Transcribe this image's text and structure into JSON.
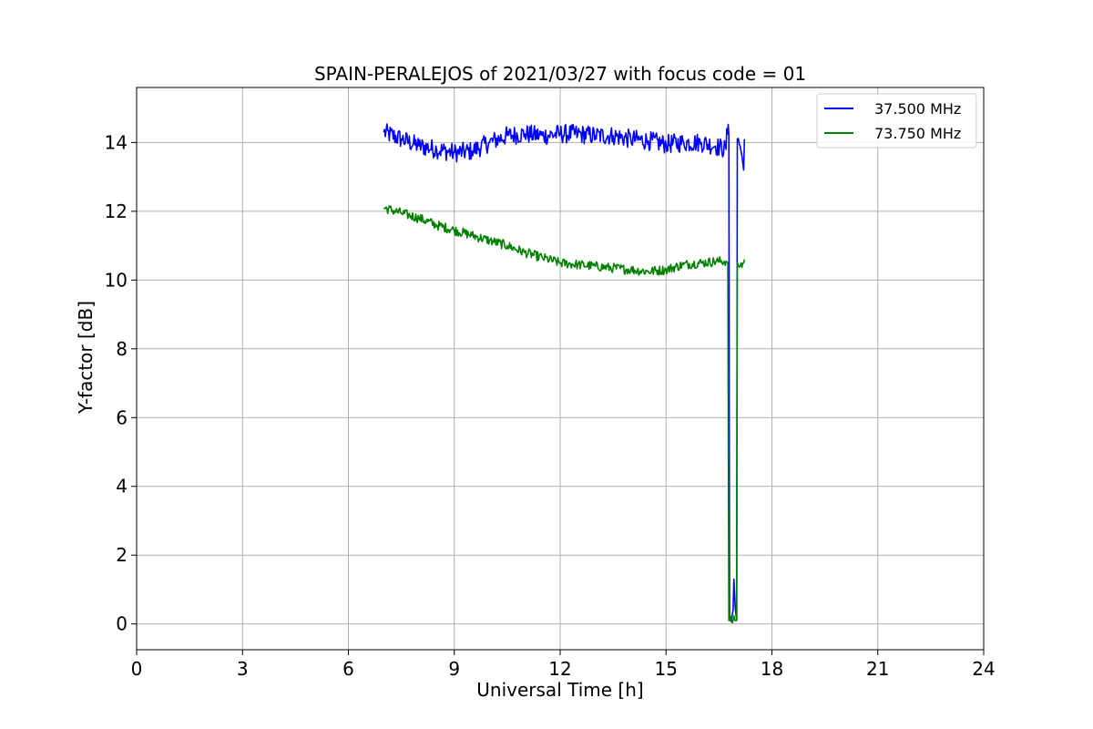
{
  "chart_data": {
    "type": "line",
    "title": "SPAIN-PERALEJOS of 2021/03/27 with focus code = 01",
    "xlabel": "Universal Time [h]",
    "ylabel": "Y-factor [dB]",
    "xlim": [
      0,
      24
    ],
    "ylim": [
      -0.75,
      15.6
    ],
    "xticks": [
      0,
      3,
      6,
      9,
      12,
      15,
      18,
      21,
      24
    ],
    "yticks": [
      0,
      2,
      4,
      6,
      8,
      10,
      12,
      14
    ],
    "grid": true,
    "legend_position": "top-right",
    "series": [
      {
        "name": "37.500 MHz",
        "color": "#0000ff",
        "noise": 0.28,
        "points": [
          [
            7.0,
            14.3
          ],
          [
            7.5,
            14.1
          ],
          [
            8.0,
            13.9
          ],
          [
            8.5,
            13.8
          ],
          [
            9.0,
            13.7
          ],
          [
            9.5,
            13.75
          ],
          [
            10.0,
            14.0
          ],
          [
            10.5,
            14.2
          ],
          [
            11.0,
            14.25
          ],
          [
            11.5,
            14.2
          ],
          [
            12.0,
            14.25
          ],
          [
            12.5,
            14.25
          ],
          [
            13.0,
            14.2
          ],
          [
            13.5,
            14.2
          ],
          [
            14.0,
            14.1
          ],
          [
            14.5,
            14.05
          ],
          [
            15.0,
            13.95
          ],
          [
            15.5,
            14.0
          ],
          [
            16.0,
            14.0
          ],
          [
            16.4,
            13.9
          ],
          [
            16.7,
            13.8
          ],
          [
            16.72,
            14.4
          ],
          [
            16.78,
            14.2
          ],
          [
            16.8,
            0.2
          ],
          [
            16.9,
            0.4
          ],
          [
            16.92,
            1.3
          ],
          [
            16.96,
            0.5
          ],
          [
            17.0,
            0.1
          ],
          [
            17.02,
            14.1
          ],
          [
            17.1,
            13.9
          ],
          [
            17.15,
            13.6
          ],
          [
            17.2,
            13.2
          ],
          [
            17.22,
            14.1
          ]
        ]
      },
      {
        "name": "73.750 MHz",
        "color": "#008000",
        "noise": 0.14,
        "points": [
          [
            7.0,
            12.1
          ],
          [
            7.5,
            11.95
          ],
          [
            8.0,
            11.8
          ],
          [
            8.5,
            11.6
          ],
          [
            9.0,
            11.45
          ],
          [
            9.5,
            11.3
          ],
          [
            10.0,
            11.15
          ],
          [
            10.5,
            11.0
          ],
          [
            11.0,
            10.8
          ],
          [
            11.5,
            10.65
          ],
          [
            12.0,
            10.5
          ],
          [
            12.5,
            10.45
          ],
          [
            13.0,
            10.4
          ],
          [
            13.5,
            10.35
          ],
          [
            14.0,
            10.3
          ],
          [
            14.5,
            10.25
          ],
          [
            15.0,
            10.3
          ],
          [
            15.5,
            10.45
          ],
          [
            16.0,
            10.5
          ],
          [
            16.5,
            10.55
          ],
          [
            16.7,
            10.55
          ],
          [
            16.75,
            10.5
          ],
          [
            16.78,
            0.1
          ],
          [
            16.8,
            0.1
          ],
          [
            16.95,
            0.1
          ],
          [
            17.0,
            0.1
          ],
          [
            17.02,
            10.5
          ],
          [
            17.1,
            10.4
          ],
          [
            17.2,
            10.5
          ],
          [
            17.22,
            10.6
          ]
        ]
      }
    ]
  }
}
